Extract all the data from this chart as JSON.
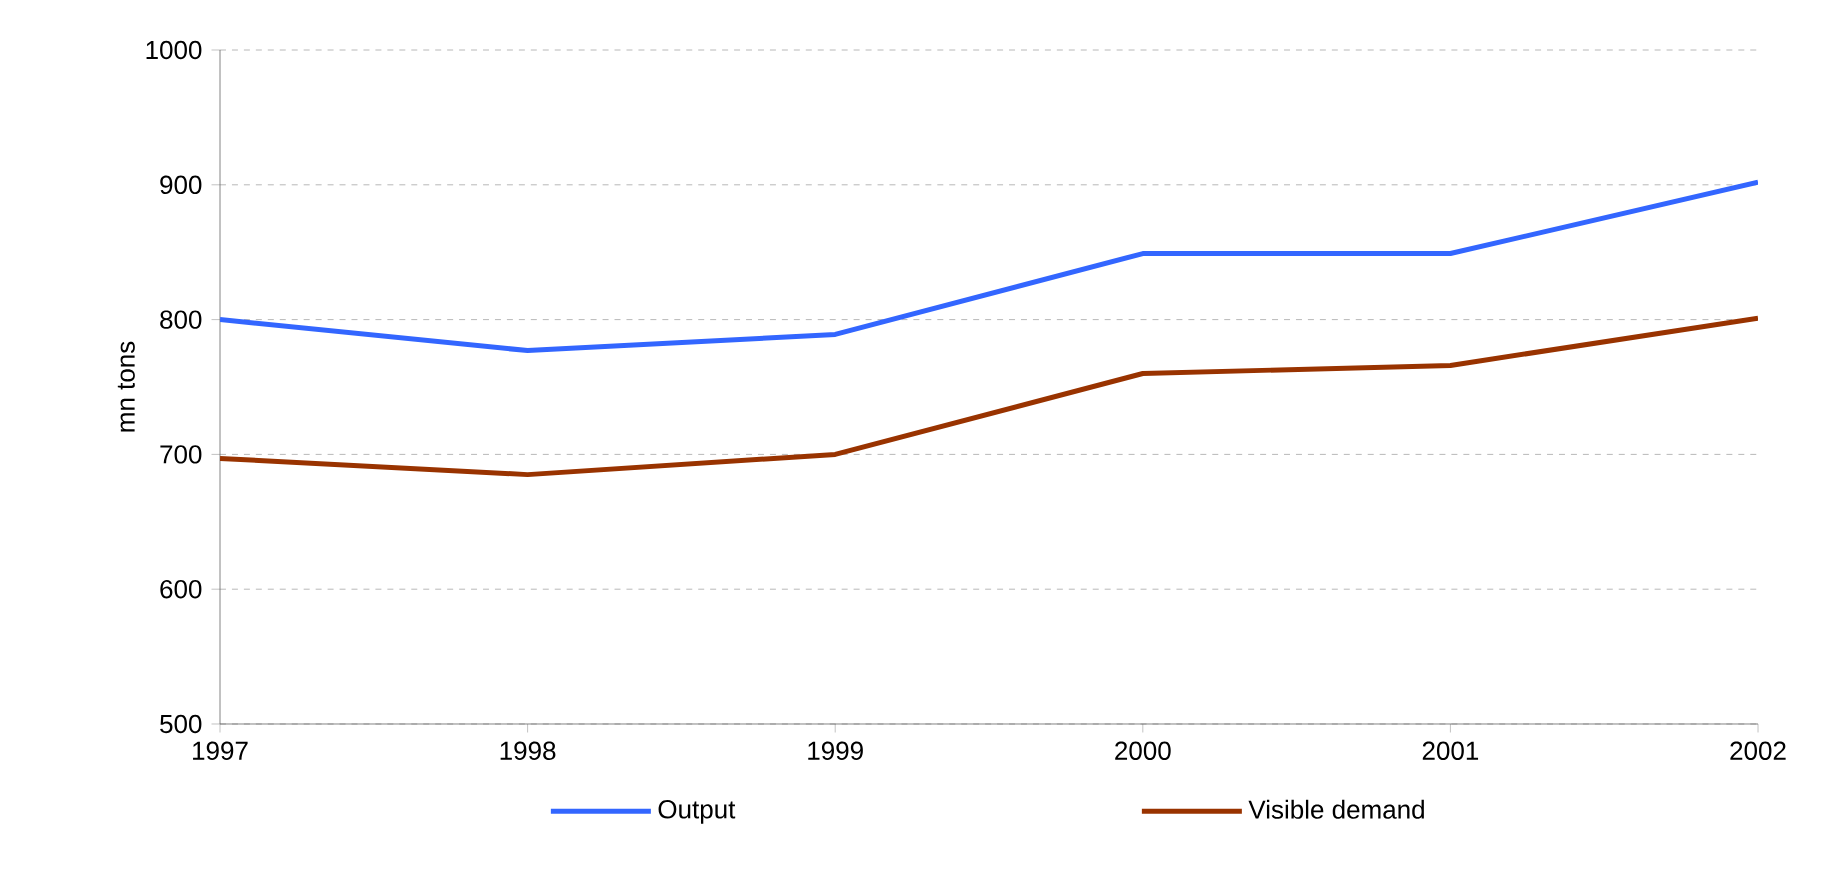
{
  "chart_data": {
    "type": "line",
    "ylabel": "mn tons",
    "x": [
      1997,
      1998,
      1999,
      2000,
      2001,
      2002
    ],
    "series": [
      {
        "name": "Output",
        "color": "#3366ff",
        "values": [
          800,
          777,
          789,
          849,
          849,
          902
        ]
      },
      {
        "name": "Visible demand",
        "color": "#993300",
        "values": [
          697,
          685,
          700,
          760,
          766,
          801
        ]
      }
    ],
    "xlim": [
      1997,
      2002
    ],
    "xticks": [
      1997,
      1998,
      1999,
      2000,
      2001,
      2002
    ],
    "ylim": [
      500,
      1000
    ],
    "yticks": [
      500,
      600,
      700,
      800,
      900,
      1000
    ],
    "grid": "y",
    "legend": "bottom",
    "marker": "none",
    "line_style": "solid"
  }
}
